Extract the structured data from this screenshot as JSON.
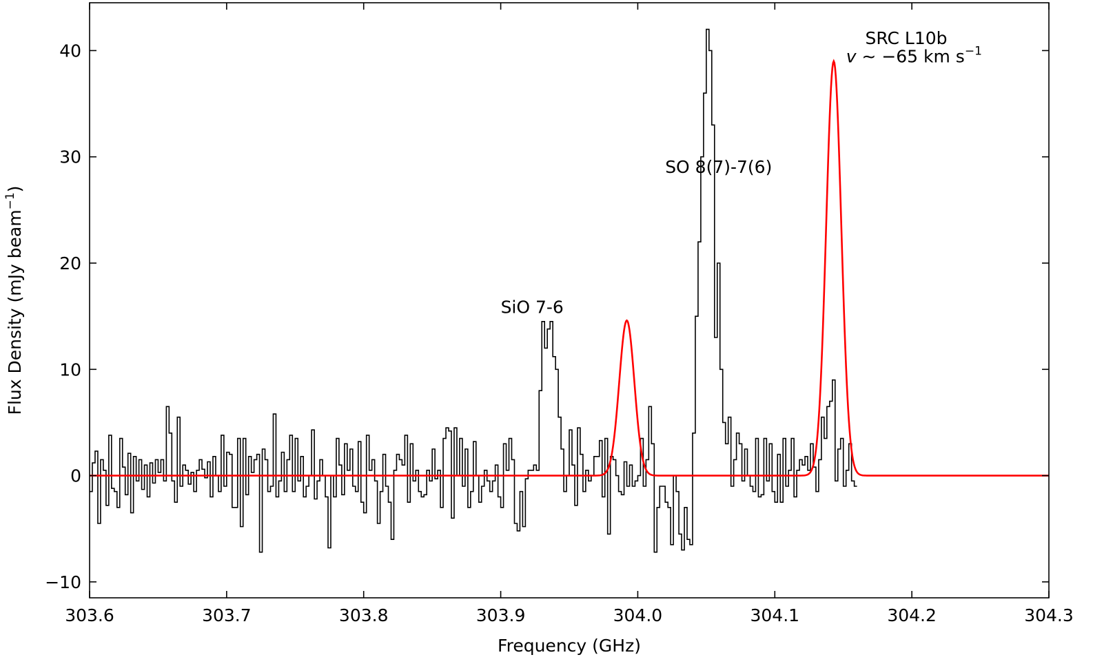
{
  "chart_data": {
    "type": "line",
    "title": "",
    "xlabel": "Frequency (GHz)",
    "ylabel": "Flux Density (mJy beam",
    "ylabel_sup": "−1",
    "ylabel_end": ")",
    "xlim": [
      303.6,
      304.3
    ],
    "ylim": [
      -11.5,
      44.5
    ],
    "x_ticks": [
      303.6,
      303.7,
      303.8,
      303.9,
      304.0,
      304.1,
      304.2,
      304.3
    ],
    "x_tick_labels": [
      "303.6",
      "303.7",
      "303.8",
      "303.9",
      "304.0",
      "304.1",
      "304.2",
      "304.3"
    ],
    "y_ticks": [
      -10,
      0,
      10,
      20,
      30,
      40
    ],
    "y_tick_labels": [
      "−10",
      "0",
      "10",
      "20",
      "30",
      "40"
    ],
    "grid": false,
    "annotations": [
      {
        "text": "SiO 7-6",
        "x": 303.9,
        "y": 15.3
      },
      {
        "text": "SO 8(7)-7(6)",
        "x": 304.02,
        "y": 28.5
      },
      {
        "text": "SRC L10b",
        "x": 304.166,
        "y": 40.6
      }
    ],
    "velocity_label": {
      "symbol": "v",
      "text": " ∼ −65 km s",
      "sup": "−1",
      "x": 304.152,
      "y": 38.9
    },
    "series": [
      {
        "style": "step",
        "color": "#000000",
        "x_start": 303.6,
        "x_step": 0.002,
        "values": [
          -1.5,
          1.2,
          2.3,
          -4.5,
          1.5,
          0.5,
          -2.8,
          3.8,
          -1.2,
          -1.5,
          -3.0,
          3.5,
          0.8,
          -1.8,
          2.1,
          -3.5,
          1.8,
          -0.5,
          1.5,
          -1.3,
          1.0,
          -2.0,
          1.2,
          -0.7,
          1.5,
          0.3,
          1.5,
          -0.5,
          6.5,
          4.0,
          -0.5,
          -2.5,
          5.5,
          -1.0,
          1.0,
          0.5,
          -0.8,
          0.3,
          -1.5,
          0.5,
          1.5,
          0.6,
          -0.2,
          1.3,
          -2.0,
          1.8,
          0.0,
          -1.5,
          3.8,
          -1.0,
          2.2,
          2.0,
          -3.0,
          -3.0,
          3.5,
          -4.8,
          3.5,
          -1.8,
          1.8,
          0.3,
          1.5,
          2.0,
          -7.2,
          2.5,
          1.5,
          -1.5,
          -1.0,
          5.8,
          -2.0,
          -0.5,
          2.2,
          -1.5,
          1.5,
          3.8,
          -1.5,
          3.5,
          -0.5,
          1.8,
          -2.0,
          -1.0,
          0.0,
          4.3,
          -2.2,
          -0.5,
          1.5,
          0.0,
          -2.0,
          -6.8,
          0.0,
          -2.0,
          3.5,
          1.0,
          -1.8,
          3.0,
          0.5,
          2.5,
          -1.0,
          -1.5,
          3.2,
          -2.5,
          -3.5,
          3.8,
          0.5,
          1.5,
          -0.5,
          -4.5,
          -1.5,
          2.0,
          -1.0,
          -2.5,
          -6.0,
          0.5,
          2.0,
          1.5,
          1.0,
          3.8,
          -2.5,
          3.0,
          -0.5,
          0.5,
          -1.5,
          -2.0,
          -1.8,
          0.5,
          -0.5,
          2.5,
          -0.3,
          0.5,
          -3.0,
          3.5,
          4.5,
          4.2,
          -4.0,
          4.5,
          0.0,
          3.5,
          -1.0,
          2.5,
          -3.0,
          -1.5,
          3.2,
          0.0,
          -2.5,
          -1.0,
          0.5,
          -0.5,
          -1.5,
          -0.5,
          1.0,
          -2.0,
          -3.0,
          3.0,
          0.5,
          3.5,
          1.5,
          -4.5,
          -5.2,
          -1.5,
          -4.8,
          -0.3,
          0.5,
          0.5,
          1.0,
          0.5,
          8.0,
          14.5,
          12.0,
          13.8,
          14.5,
          11.2,
          10.0,
          5.5,
          2.5,
          -1.5,
          0.0,
          4.3,
          1.0,
          -2.8,
          4.5,
          2.0,
          -1.5,
          0.5,
          -0.5,
          0.0,
          1.8,
          1.8,
          3.3,
          -2.0,
          3.5,
          -5.5,
          1.8,
          1.5,
          0.0,
          -1.5,
          -1.8,
          1.3,
          -1.0,
          1.0,
          -1.0,
          -0.5,
          0.0,
          3.5,
          -1.0,
          1.5,
          6.5,
          3.0,
          -7.2,
          -3.0,
          -1.0,
          -1.0,
          -2.5,
          -3.0,
          -6.5,
          0.0,
          -1.5,
          -5.5,
          -7.0,
          -3.0,
          -6.0,
          -6.5,
          4.0,
          15.0,
          22.0,
          30.0,
          36.0,
          42.0,
          40.0,
          33.0,
          13.0,
          20.0,
          10.0,
          5.0,
          3.0,
          5.5,
          -1.0,
          1.5,
          4.0,
          3.0,
          -0.5,
          2.5,
          0.0,
          -1.0,
          -1.5,
          3.5,
          -2.0,
          -1.8,
          3.5,
          -0.5,
          3.0,
          -1.5,
          -2.5,
          2.0,
          -2.5,
          3.5,
          -1.0,
          0.5,
          3.5,
          -2.0,
          0.5,
          1.5,
          1.0,
          1.8,
          0.5,
          3.0,
          0.8,
          -1.5,
          1.5,
          5.5,
          3.5,
          6.5,
          7.0,
          9.0,
          -0.5,
          2.5,
          3.5,
          -1.0,
          0.5,
          3.0,
          -0.5,
          -1.0
        ]
      },
      {
        "style": "gaussian-fit",
        "color": "#ff0000",
        "components": [
          {
            "center": 303.992,
            "amplitude": 14.6,
            "sigma": 0.0055
          },
          {
            "center": 304.143,
            "amplitude": 39.0,
            "sigma": 0.0055
          }
        ]
      }
    ]
  }
}
